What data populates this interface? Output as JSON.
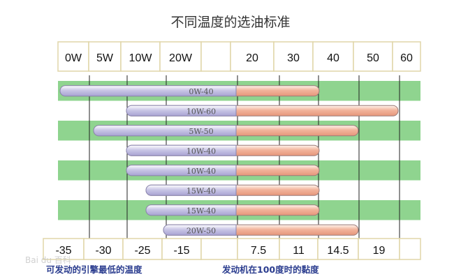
{
  "title": "不同温度的选油标准",
  "top_header": {
    "cells": [
      "0W",
      "5W",
      "10W",
      "20W",
      "",
      "20",
      "30",
      "40",
      "50",
      "60"
    ]
  },
  "bottom_header": {
    "cells": [
      "-35",
      "-30",
      "-25",
      "-15",
      "",
      "7.5",
      "11",
      "14.5",
      "19",
      ""
    ]
  },
  "captions": {
    "left": "可发动的引擎最低的温度",
    "right": "发动机在100度时的黏度"
  },
  "watermark": "Bai du 百科",
  "colors": {
    "green_band": "#8fd48f",
    "white_band": "#ffffff",
    "winter_part": "#c9c6e6",
    "summer_part": "#f2b49c",
    "header_border": "#e0d6a8",
    "grid_line": "#222222",
    "title": "#333333",
    "caption": "#2b3d8f",
    "bar_label": "#555555"
  },
  "chart_data": {
    "type": "bar",
    "title": "不同温度的选油标准",
    "top_axis_labels": [
      "0W",
      "5W",
      "10W",
      "20W",
      "",
      "20",
      "30",
      "40",
      "50",
      "60"
    ],
    "bottom_axis_labels": [
      "-35",
      "-30",
      "-25",
      "-15",
      "",
      "7.5",
      "11",
      "14.5",
      "19",
      ""
    ],
    "xlabel_left": "可发动的引擎最低的温度",
    "xlabel_right": "发动机在100度时的黏度",
    "series": [
      {
        "name": "0W-40",
        "start": "0W",
        "end": "40"
      },
      {
        "name": "10W-60",
        "start": "10W",
        "end": "60"
      },
      {
        "name": "5W-50",
        "start": "5W",
        "end": "50"
      },
      {
        "name": "10W-40",
        "start": "10W",
        "end": "40"
      },
      {
        "name": "10W-40",
        "start": "10W",
        "end": "40"
      },
      {
        "name": "15W-40",
        "start": "15W",
        "end": "40"
      },
      {
        "name": "15W-40",
        "start": "15W",
        "end": "40"
      },
      {
        "name": "20W-50",
        "start": "20W",
        "end": "50"
      }
    ],
    "grid": true
  }
}
